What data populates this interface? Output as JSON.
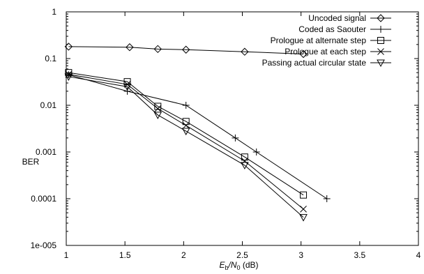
{
  "chart_data": {
    "type": "line",
    "title": "",
    "xlabel": "E_b/N_0 (dB)",
    "xlabel_parts": {
      "e": "E",
      "e_sub": "b",
      "slash": "/N",
      "n_sub": "0",
      "unit": " (dB)"
    },
    "ylabel": "BER",
    "xlim": [
      1,
      4
    ],
    "ylim": [
      1e-05,
      1
    ],
    "yscale": "log",
    "x_ticks": [
      "1",
      "1.5",
      "2",
      "2.5",
      "3",
      "3.5",
      "4"
    ],
    "y_ticks": [
      "1",
      "0.1",
      "0.01",
      "0.001",
      "0.0001",
      "1e-005"
    ],
    "grid": false,
    "legend_position": "top-right",
    "series": [
      {
        "name": "Uncoded signal",
        "marker": "diamond",
        "x": [
          1.02,
          1.54,
          1.78,
          2.02,
          2.52,
          3.02
        ],
        "y": [
          0.18,
          0.175,
          0.16,
          0.155,
          0.14,
          0.125
        ]
      },
      {
        "name": "Coded as Saouter",
        "marker": "plus",
        "x": [
          1.02,
          1.52,
          2.02,
          2.44,
          2.62,
          3.22
        ],
        "y": [
          0.045,
          0.02,
          0.01,
          0.002,
          0.001,
          0.0001
        ]
      },
      {
        "name": "Prologue at alternate step",
        "marker": "square",
        "x": [
          1.02,
          1.52,
          1.78,
          2.02,
          2.52,
          3.02
        ],
        "y": [
          0.05,
          0.032,
          0.0095,
          0.0045,
          0.00078,
          0.00012
        ]
      },
      {
        "name": "Prologue at each step",
        "marker": "cross",
        "x": [
          1.02,
          1.52,
          1.78,
          2.02,
          2.52,
          3.02
        ],
        "y": [
          0.046,
          0.028,
          0.0085,
          0.0037,
          0.00064,
          6e-05
        ]
      },
      {
        "name": "Passing actual circular state",
        "marker": "triangle",
        "x": [
          1.02,
          1.52,
          1.78,
          2.02,
          2.52,
          3.02
        ],
        "y": [
          0.041,
          0.025,
          0.0062,
          0.0028,
          0.00052,
          4e-05
        ]
      }
    ]
  }
}
